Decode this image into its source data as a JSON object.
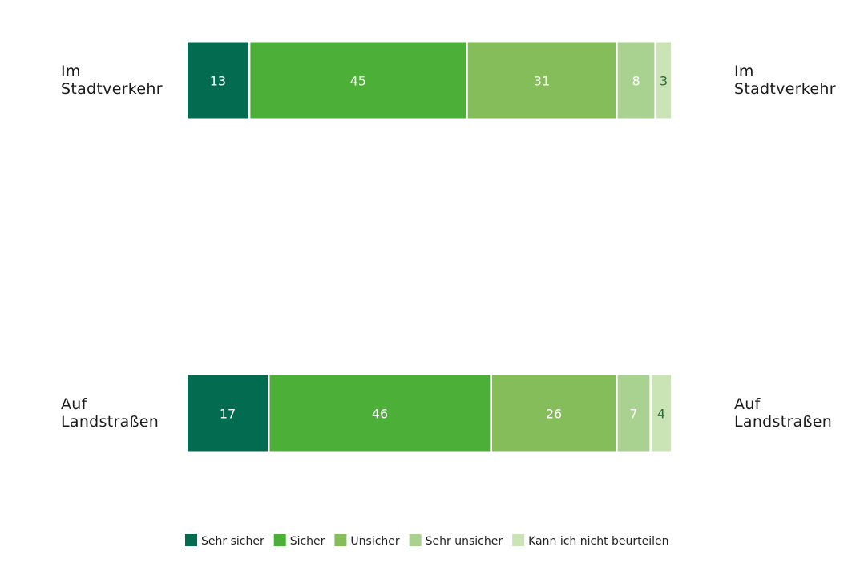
{
  "chart_data": {
    "type": "bar",
    "orientation": "horizontal",
    "stacked": true,
    "categories": [
      "Im Stadtverkehr",
      "Auf Landstraßen"
    ],
    "series": [
      {
        "name": "Sehr sicher",
        "color": "#036b4f",
        "values": [
          13,
          17
        ]
      },
      {
        "name": "Sicher",
        "color": "#4caf37",
        "values": [
          45,
          46
        ]
      },
      {
        "name": "Unsicher",
        "color": "#85bd5b",
        "values": [
          31,
          26
        ]
      },
      {
        "name": "Sehr unsicher",
        "color": "#a9d18f",
        "values": [
          8,
          7
        ]
      },
      {
        "name": "Kann ich nicht beurteilen",
        "color": "#cae4b6",
        "values": [
          3,
          4
        ]
      }
    ],
    "legend_position": "bottom"
  }
}
